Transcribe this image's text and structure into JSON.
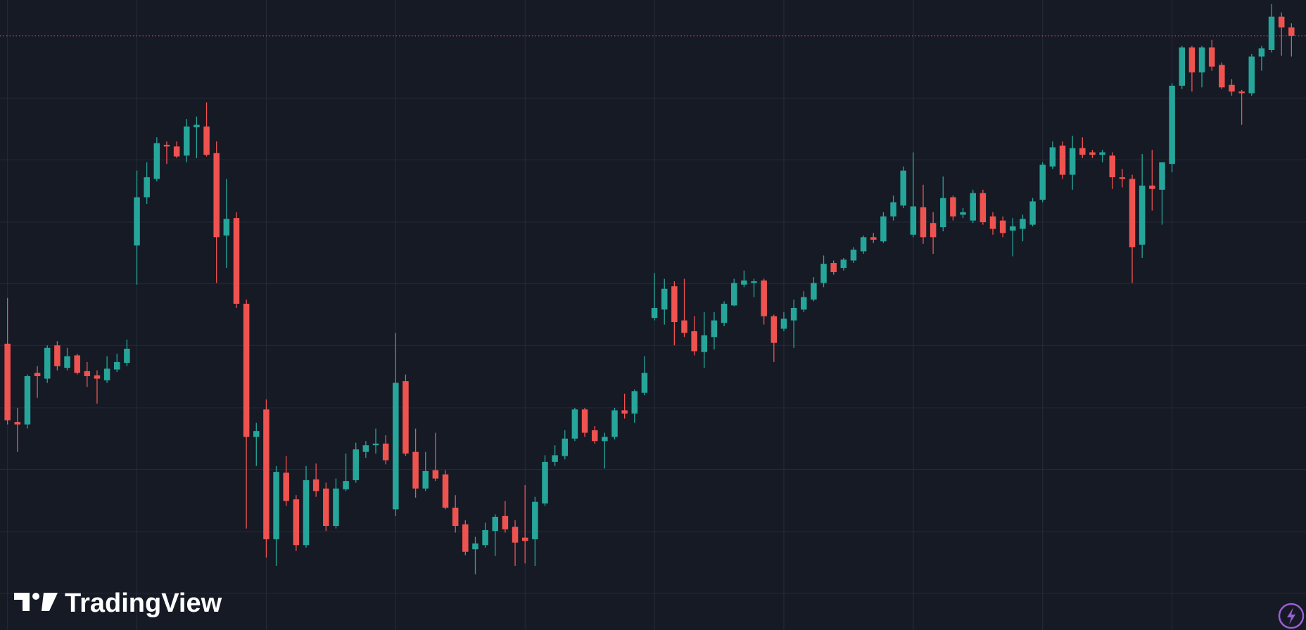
{
  "brand": "TradingView",
  "chart_data": {
    "type": "candlestick",
    "open": [
      344,
      250,
      247,
      309,
      302,
      342,
      315,
      330,
      311,
      306,
      300,
      313,
      321,
      462,
      520,
      542,
      583,
      581,
      570,
      604,
      605,
      573,
      474,
      495,
      392,
      232,
      265,
      109,
      189,
      157,
      102,
      181,
      170,
      125,
      169,
      180,
      214,
      222,
      224,
      145,
      299,
      214,
      170,
      192,
      187,
      147,
      127,
      97,
      102,
      119,
      137,
      124,
      111,
      109,
      152,
      202,
      209,
      230,
      265,
      240,
      227,
      232,
      264,
      260,
      285,
      375,
      385,
      413,
      372,
      359,
      334,
      352,
      369,
      390,
      415,
      417,
      420,
      377,
      362,
      372,
      385,
      397,
      417,
      441,
      435,
      444,
      455,
      472,
      467,
      497,
      510,
      475,
      508,
      489,
      484,
      520,
      499,
      492,
      525,
      497,
      492,
      480,
      482,
      487,
      517,
      557,
      582,
      547,
      579,
      574,
      571,
      570,
      544,
      542,
      463,
      534,
      529,
      560,
      654,
      700,
      670,
      700,
      679,
      655,
      647,
      645,
      689,
      697,
      737,
      724
    ],
    "high": [
      399,
      267,
      307,
      317,
      342,
      347,
      339,
      332,
      322,
      312,
      329,
      332,
      349,
      552,
      562,
      592,
      587,
      587,
      614,
      617,
      634,
      587,
      542,
      502,
      397,
      249,
      277,
      197,
      209,
      162,
      197,
      200,
      177,
      182,
      212,
      225,
      227,
      242,
      234,
      357,
      307,
      242,
      214,
      237,
      192,
      162,
      132,
      112,
      129,
      139,
      155,
      132,
      174,
      160,
      210,
      222,
      240,
      267,
      267,
      245,
      237,
      267,
      284,
      289,
      329,
      429,
      422,
      419,
      422,
      377,
      382,
      382,
      395,
      422,
      432,
      422,
      422,
      379,
      382,
      397,
      407,
      424,
      450,
      444,
      447,
      460,
      474,
      477,
      502,
      522,
      557,
      574,
      535,
      502,
      545,
      522,
      507,
      529,
      529,
      502,
      497,
      495,
      499,
      519,
      562,
      587,
      587,
      594,
      592,
      577,
      577,
      574,
      554,
      547,
      572,
      577,
      562,
      657,
      702,
      702,
      702,
      709,
      682,
      662,
      649,
      692,
      702,
      752,
      742,
      729
    ],
    "low": [
      247,
      214,
      242,
      279,
      297,
      312,
      312,
      307,
      292,
      272,
      297,
      310,
      317,
      415,
      512,
      539,
      560,
      567,
      562,
      567,
      569,
      417,
      435,
      387,
      122,
      197,
      87,
      77,
      149,
      95,
      99,
      160,
      119,
      122,
      167,
      177,
      207,
      212,
      199,
      137,
      209,
      159,
      167,
      179,
      145,
      117,
      90,
      67,
      99,
      89,
      117,
      77,
      80,
      77,
      149,
      197,
      205,
      227,
      232,
      224,
      194,
      229,
      254,
      249,
      282,
      372,
      367,
      342,
      352,
      330,
      315,
      337,
      365,
      389,
      412,
      400,
      367,
      322,
      359,
      339,
      382,
      395,
      412,
      427,
      432,
      441,
      452,
      465,
      465,
      492,
      507,
      472,
      464,
      452,
      479,
      492,
      495,
      489,
      487,
      475,
      472,
      449,
      467,
      485,
      514,
      554,
      542,
      529,
      567,
      567,
      562,
      530,
      532,
      417,
      447,
      504,
      487,
      550,
      650,
      647,
      652,
      672,
      650,
      642,
      607,
      642,
      672,
      694,
      690,
      689
    ],
    "close": [
      252,
      247,
      305,
      305,
      339,
      317,
      329,
      309,
      305,
      302,
      314,
      322,
      338,
      520,
      544,
      585,
      581,
      569,
      605,
      607,
      571,
      472,
      494,
      392,
      232,
      239,
      109,
      190,
      155,
      102,
      180,
      167,
      125,
      170,
      179,
      217,
      222,
      224,
      204,
      297,
      212,
      170,
      191,
      182,
      147,
      125,
      94,
      104,
      120,
      136,
      121,
      105,
      107,
      154,
      202,
      210,
      230,
      265,
      237,
      227,
      232,
      264,
      260,
      287,
      309,
      387,
      410,
      370,
      357,
      335,
      354,
      372,
      392,
      417,
      420,
      419,
      377,
      345,
      374,
      387,
      400,
      417,
      440,
      430,
      445,
      457,
      472,
      469,
      497,
      514,
      552,
      509,
      472,
      472,
      519,
      497,
      502,
      525,
      490,
      482,
      477,
      485,
      494,
      515,
      559,
      580,
      547,
      579,
      571,
      571,
      574,
      544,
      542,
      460,
      534,
      530,
      562,
      654,
      700,
      670,
      700,
      677,
      652,
      647,
      645,
      689,
      699,
      737,
      724,
      714
    ],
    "ylim": [
      0,
      757
    ],
    "yticks": [
      44,
      118,
      193,
      267,
      342,
      416,
      490,
      565,
      639
    ],
    "xticks": [
      0,
      13,
      26,
      39,
      52,
      65,
      78,
      91,
      104,
      117
    ],
    "grid": true,
    "last_price_line": true,
    "colors": {
      "up": "#26a69a",
      "down": "#ef5350"
    }
  }
}
